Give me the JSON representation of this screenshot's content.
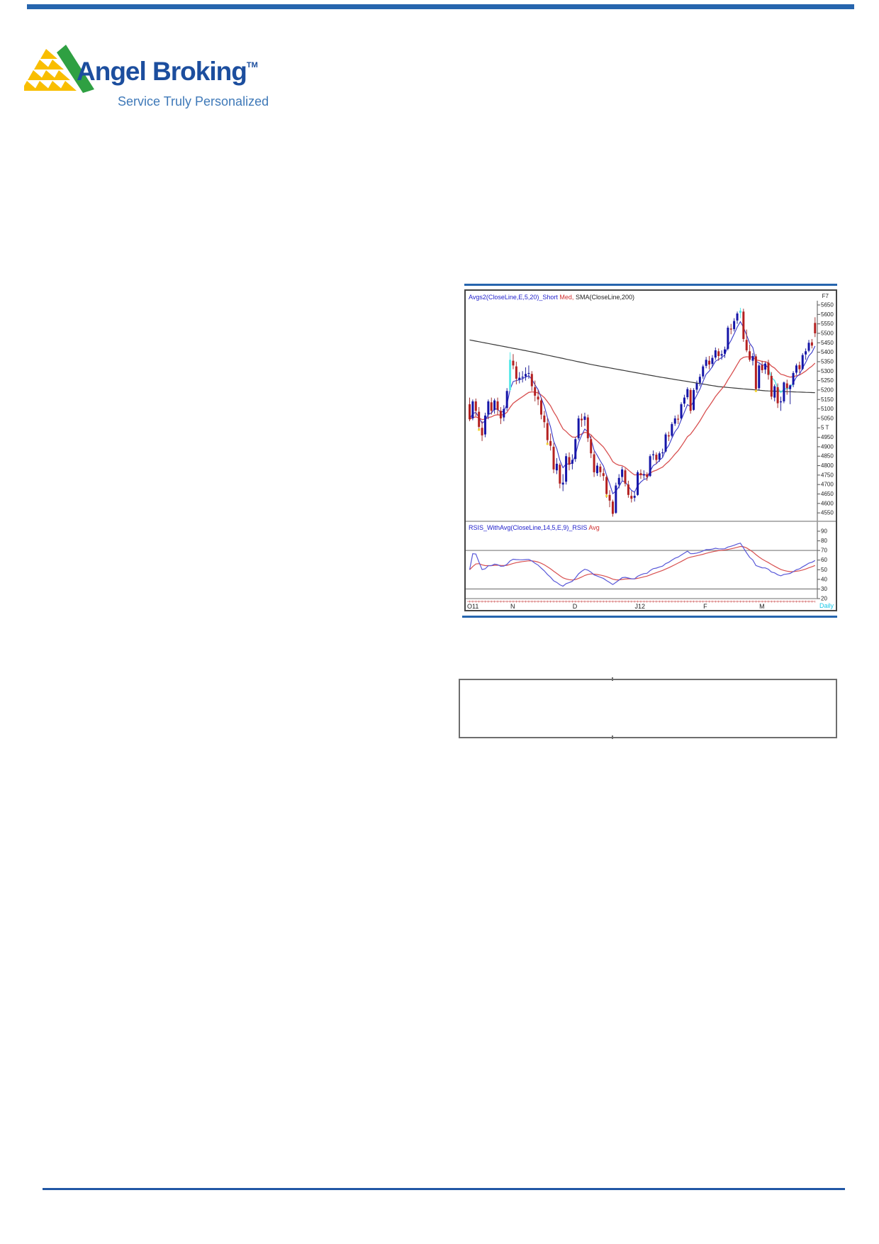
{
  "header": {
    "accent_color": "#2665AE"
  },
  "logo": {
    "brand": "Angel Broking",
    "trademark": "TM",
    "tagline": "Service Truly Personalized",
    "brand_color": "#1C4E9E",
    "tagline_color": "#3F79B8",
    "triangle_yellow": "#F9BE00",
    "stripe_green": "#2FA042"
  },
  "chart": {
    "price_legend": {
      "part_short": "Avgs2(CloseLine,E,5,20)_Short",
      "part_med": " Med,",
      "part_sma": " SMA(CloseLine,200)"
    },
    "corner_label": "F7",
    "rsi_legend": {
      "part_rsi": "RSIS_WithAvg(CloseLine,14,5,E,9)_RSIS",
      "part_avg": " Avg"
    },
    "periodicity_label": "Daily"
  },
  "chart_data": {
    "type": "candlestick_with_rsi",
    "title": "Daily candlestick chart with short/medium moving averages, 200-day SMA and smoothed RSI",
    "x_axis": {
      "labels": [
        "O11",
        "N",
        "D",
        "J12",
        "F",
        "M"
      ],
      "label_candle_index": [
        0,
        14,
        34,
        54,
        76,
        94
      ],
      "periodicity": "Daily"
    },
    "price_axis": {
      "tick_values": [
        5650,
        5600,
        5550,
        5500,
        5450,
        5400,
        5350,
        5300,
        5250,
        5200,
        5150,
        5100,
        5050,
        5000,
        4950,
        4900,
        4850,
        4800,
        4750,
        4700,
        4650,
        4600,
        4550
      ],
      "tick_labels": [
        "5650",
        "5600",
        "5550",
        "5500",
        "5450",
        "5400",
        "5350",
        "5300",
        "5250",
        "5200",
        "5150",
        "5100",
        "5050",
        "5 T",
        "4950",
        "4900",
        "4850",
        "4800",
        "4750",
        "4700",
        "4650",
        "4600",
        "4550"
      ],
      "range_top": 5729,
      "range_bottom": 4504
    },
    "rsi_axis": {
      "tick_values": [
        90,
        80,
        70,
        60,
        50,
        40,
        30,
        20
      ],
      "tick_labels": [
        "90",
        "80",
        "70",
        "60",
        "50",
        "40",
        "30",
        "20"
      ],
      "gridlines": [
        70,
        30,
        20
      ]
    },
    "indicators": {
      "short_ema_period": 5,
      "medium_ema_period": 20,
      "sma_period": 200,
      "rsi_period": 14,
      "rsi_smoothing": 5,
      "rsi_avg_period": 9,
      "sma200_waypoints": [
        [
          0,
          5465
        ],
        [
          20,
          5402
        ],
        [
          40,
          5332
        ],
        [
          60,
          5272
        ],
        [
          80,
          5218
        ],
        [
          95,
          5196
        ],
        [
          111,
          5186
        ]
      ]
    },
    "cyan_candles": [
      13,
      87
    ],
    "cyan_ema_segment": [
      96,
      104
    ],
    "yellow_dots": [
      [
        3,
        4990
      ],
      [
        25,
        4915
      ],
      [
        44,
        4640
      ],
      [
        92,
        5195
      ]
    ],
    "candles": [
      [
        5125,
        5160,
        5035,
        5045
      ],
      [
        5050,
        5150,
        5040,
        5140
      ],
      [
        5140,
        5155,
        5060,
        5090
      ],
      [
        5085,
        5110,
        4990,
        5005
      ],
      [
        5000,
        5035,
        4930,
        4960
      ],
      [
        4965,
        5080,
        4950,
        5065
      ],
      [
        5070,
        5150,
        5045,
        5140
      ],
      [
        5135,
        5160,
        5070,
        5090
      ],
      [
        5095,
        5155,
        5075,
        5145
      ],
      [
        5140,
        5160,
        5070,
        5095
      ],
      [
        5090,
        5110,
        5020,
        5050
      ],
      [
        5055,
        5120,
        5035,
        5100
      ],
      [
        5105,
        5210,
        5090,
        5195
      ],
      [
        5200,
        5400,
        5195,
        5360
      ],
      [
        5355,
        5390,
        5310,
        5330
      ],
      [
        5325,
        5350,
        5230,
        5260
      ],
      [
        5255,
        5295,
        5235,
        5265
      ],
      [
        5268,
        5300,
        5240,
        5270
      ],
      [
        5272,
        5320,
        5250,
        5285
      ],
      [
        5288,
        5330,
        5260,
        5290
      ],
      [
        5285,
        5300,
        5195,
        5220
      ],
      [
        5215,
        5250,
        5140,
        5170
      ],
      [
        5165,
        5200,
        5120,
        5150
      ],
      [
        5145,
        5160,
        5045,
        5070
      ],
      [
        5065,
        5090,
        5000,
        5030
      ],
      [
        5025,
        5050,
        4910,
        4935
      ],
      [
        4930,
        4970,
        4880,
        4905
      ],
      [
        4900,
        4920,
        4760,
        4780
      ],
      [
        4775,
        4840,
        4755,
        4810
      ],
      [
        4805,
        4815,
        4680,
        4705
      ],
      [
        4700,
        4755,
        4665,
        4710
      ],
      [
        4715,
        4865,
        4700,
        4850
      ],
      [
        4845,
        4870,
        4775,
        4805
      ],
      [
        4810,
        4860,
        4780,
        4830
      ],
      [
        4835,
        4950,
        4820,
        4940
      ],
      [
        4945,
        5065,
        4935,
        5050
      ],
      [
        5048,
        5075,
        5005,
        5040
      ],
      [
        5042,
        5080,
        5010,
        5060
      ],
      [
        5055,
        5070,
        4925,
        4945
      ],
      [
        4940,
        4960,
        4840,
        4865
      ],
      [
        4860,
        4875,
        4740,
        4765
      ],
      [
        4760,
        4815,
        4745,
        4800
      ],
      [
        4795,
        4810,
        4740,
        4765
      ],
      [
        4760,
        4785,
        4720,
        4745
      ],
      [
        4740,
        4750,
        4630,
        4650
      ],
      [
        4645,
        4670,
        4580,
        4615
      ],
      [
        4610,
        4620,
        4530,
        4545
      ],
      [
        4550,
        4710,
        4545,
        4695
      ],
      [
        4700,
        4755,
        4680,
        4735
      ],
      [
        4740,
        4795,
        4720,
        4780
      ],
      [
        4775,
        4785,
        4690,
        4705
      ],
      [
        4700,
        4720,
        4630,
        4645
      ],
      [
        4640,
        4665,
        4605,
        4625
      ],
      [
        4630,
        4660,
        4610,
        4640
      ],
      [
        4645,
        4775,
        4640,
        4765
      ],
      [
        4760,
        4780,
        4730,
        4750
      ],
      [
        4748,
        4775,
        4730,
        4755
      ],
      [
        4752,
        4765,
        4720,
        4740
      ],
      [
        4745,
        4860,
        4740,
        4850
      ],
      [
        4855,
        4880,
        4830,
        4860
      ],
      [
        4858,
        4870,
        4810,
        4830
      ],
      [
        4832,
        4875,
        4820,
        4865
      ],
      [
        4868,
        4890,
        4845,
        4870
      ],
      [
        4875,
        4975,
        4870,
        4965
      ],
      [
        4960,
        4980,
        4930,
        4955
      ],
      [
        4958,
        5030,
        4950,
        5020
      ],
      [
        5022,
        5065,
        5010,
        5050
      ],
      [
        5048,
        5070,
        5020,
        5045
      ],
      [
        5050,
        5135,
        5040,
        5125
      ],
      [
        5128,
        5175,
        5110,
        5160
      ],
      [
        5162,
        5215,
        5150,
        5205
      ],
      [
        5200,
        5210,
        5075,
        5090
      ],
      [
        5095,
        5210,
        5090,
        5200
      ],
      [
        5202,
        5250,
        5185,
        5235
      ],
      [
        5238,
        5285,
        5220,
        5270
      ],
      [
        5272,
        5335,
        5260,
        5325
      ],
      [
        5328,
        5375,
        5315,
        5360
      ],
      [
        5355,
        5380,
        5310,
        5335
      ],
      [
        5338,
        5385,
        5320,
        5370
      ],
      [
        5372,
        5425,
        5360,
        5410
      ],
      [
        5405,
        5420,
        5355,
        5380
      ],
      [
        5382,
        5410,
        5360,
        5390
      ],
      [
        5392,
        5430,
        5370,
        5415
      ],
      [
        5418,
        5540,
        5410,
        5530
      ],
      [
        5525,
        5550,
        5495,
        5520
      ],
      [
        5522,
        5580,
        5510,
        5565
      ],
      [
        5568,
        5615,
        5550,
        5605
      ],
      [
        5608,
        5635,
        5580,
        5620
      ],
      [
        5615,
        5630,
        5455,
        5470
      ],
      [
        5465,
        5520,
        5400,
        5410
      ],
      [
        5405,
        5440,
        5350,
        5360
      ],
      [
        5355,
        5395,
        5330,
        5380
      ],
      [
        5378,
        5390,
        5195,
        5205
      ],
      [
        5210,
        5340,
        5200,
        5330
      ],
      [
        5332,
        5355,
        5290,
        5305
      ],
      [
        5308,
        5350,
        5285,
        5340
      ],
      [
        5345,
        5360,
        5255,
        5280
      ],
      [
        5275,
        5295,
        5150,
        5165
      ],
      [
        5160,
        5230,
        5140,
        5220
      ],
      [
        5215,
        5235,
        5105,
        5130
      ],
      [
        5135,
        5165,
        5090,
        5140
      ],
      [
        5140,
        5245,
        5130,
        5240
      ],
      [
        5235,
        5255,
        5175,
        5210
      ],
      [
        5205,
        5230,
        5125,
        5225
      ],
      [
        5228,
        5300,
        5215,
        5290
      ],
      [
        5292,
        5340,
        5280,
        5330
      ],
      [
        5332,
        5350,
        5290,
        5310
      ],
      [
        5312,
        5395,
        5305,
        5385
      ],
      [
        5388,
        5420,
        5360,
        5405
      ],
      [
        5408,
        5465,
        5400,
        5450
      ],
      [
        5452,
        5470,
        5420,
        5435
      ],
      [
        5555,
        5585,
        5480,
        5500
      ]
    ],
    "colors": {
      "up_candle": "#1515A8",
      "down_candle": "#B42020",
      "cyan_candle": "#58E8E8",
      "short_ema": "#3838C8",
      "medium_ema": "#D85050",
      "sma200": "#3a3a3a",
      "rsi_line": "#5858D8",
      "rsi_avg": "#D85050",
      "grid": "#8a8a8a",
      "axis": "#555555",
      "red_baseline": "#D06060",
      "yellow_dot": "#F2D230"
    }
  },
  "footer": {
    "rule_color": "#2157A5"
  }
}
